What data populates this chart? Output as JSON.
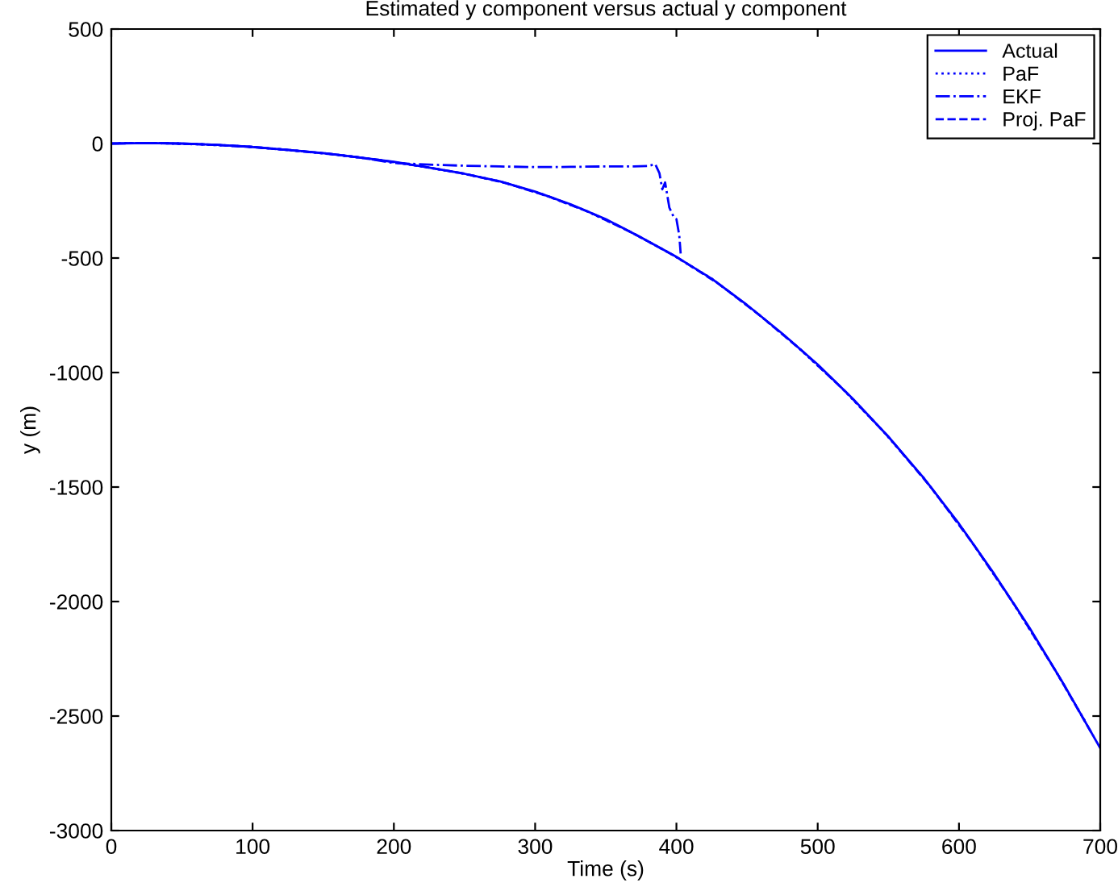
{
  "chart_data": {
    "type": "line",
    "title": "Estimated y component versus actual y component",
    "xlabel": "Time (s)",
    "ylabel": "y (m)",
    "xlim": [
      0,
      700
    ],
    "ylim": [
      -3000,
      500
    ],
    "xticks": [
      0,
      100,
      200,
      300,
      400,
      500,
      600,
      700
    ],
    "yticks": [
      -3000,
      -2500,
      -2000,
      -1500,
      -1000,
      -500,
      0,
      500
    ],
    "grid": false,
    "legend": "top right",
    "marker": "none",
    "series": [
      {
        "name": "Actual",
        "color": "#0000ff",
        "line_style": "solid",
        "x": [
          0,
          25,
          50,
          75,
          100,
          125,
          150,
          175,
          200,
          225,
          250,
          275,
          300,
          325,
          350,
          375,
          400,
          425,
          450,
          475,
          500,
          525,
          550,
          575,
          600,
          625,
          650,
          675,
          700
        ],
        "values": [
          0,
          2,
          0,
          -6,
          -15,
          -28,
          -42,
          -60,
          -80,
          -105,
          -132,
          -165,
          -210,
          -265,
          -330,
          -410,
          -495,
          -590,
          -705,
          -830,
          -965,
          -1115,
          -1280,
          -1460,
          -1660,
          -1880,
          -2115,
          -2370,
          -2640
        ]
      },
      {
        "name": "PaF",
        "color": "#0000ff",
        "line_style": "dotted",
        "x": [
          5,
          35,
          65,
          95,
          125,
          155,
          185,
          215,
          245,
          275,
          305,
          335,
          365,
          395,
          425,
          455,
          485,
          515,
          545,
          575,
          605,
          635,
          665,
          690
        ],
        "values": [
          1,
          1,
          -4,
          -13,
          -28,
          -46,
          -68,
          -95,
          -127,
          -165,
          -221,
          -291,
          -378,
          -478,
          -590,
          -730,
          -884,
          -1055,
          -1247,
          -1460,
          -1704,
          -1974,
          -2268,
          -2530
        ]
      },
      {
        "name": "EKF",
        "color": "#0000ff",
        "line_style": "dashdot",
        "x": [
          0,
          25,
          50,
          75,
          100,
          125,
          150,
          175,
          200,
          225,
          250,
          275,
          300,
          325,
          350,
          370,
          380,
          385,
          388,
          390,
          392,
          395,
          398,
          400,
          402,
          403
        ],
        "values": [
          0,
          2,
          0,
          -6,
          -15,
          -28,
          -42,
          -60,
          -85,
          -92,
          -97,
          -100,
          -103,
          -102,
          -100,
          -100,
          -98,
          -90,
          -130,
          -200,
          -170,
          -280,
          -320,
          -330,
          -400,
          -480
        ]
      },
      {
        "name": "Proj. PaF",
        "color": "#0000ff",
        "line_style": "dashed",
        "x": [
          10,
          40,
          70,
          100,
          130,
          160,
          190,
          220,
          250,
          280,
          310,
          340,
          370,
          400,
          430,
          460,
          490,
          520,
          550,
          580,
          610,
          640,
          670,
          695
        ],
        "values": [
          1,
          1,
          -5,
          -15,
          -31,
          -49,
          -72,
          -100,
          -132,
          -174,
          -232,
          -304,
          -394,
          -495,
          -613,
          -755,
          -911,
          -1085,
          -1280,
          -1500,
          -1748,
          -2021,
          -2319,
          -2586
        ]
      }
    ]
  }
}
